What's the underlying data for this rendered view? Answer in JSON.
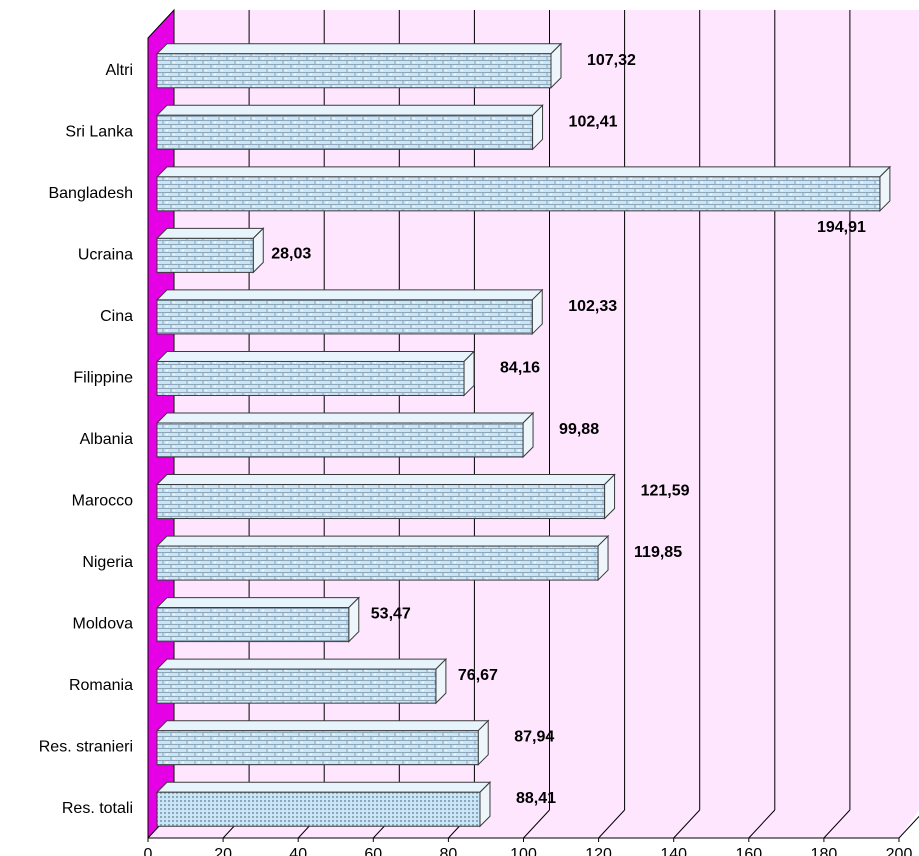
{
  "chart_data": {
    "type": "bar",
    "orientation": "horizontal",
    "categories": [
      "Altri",
      "Sri Lanka",
      "Bangladesh",
      "Ucraina",
      "Cina",
      "Filippine",
      "Albania",
      "Marocco",
      "Nigeria",
      "Moldova",
      "Romania",
      "Res. stranieri",
      "Res. totali"
    ],
    "values": [
      107.32,
      102.41,
      194.91,
      28.03,
      102.33,
      84.16,
      99.88,
      121.59,
      119.85,
      53.47,
      76.67,
      87.94,
      88.41
    ],
    "value_labels": [
      "107,32",
      "102,41",
      "194,91",
      "28,03",
      "102,33",
      "84,16",
      "99,88",
      "121,59",
      "119,85",
      "53,47",
      "76,67",
      "87,94",
      "88,41"
    ],
    "x_ticks": [
      "0",
      "20",
      "40",
      "60",
      "80",
      "100",
      "120",
      "140",
      "160",
      "180",
      "200"
    ],
    "xlim": [
      0,
      200
    ],
    "grid": true,
    "style": "3d",
    "colors": {
      "plot_background": "#FFE6FF",
      "left_wall": "#E600E6",
      "bar_fill": "#C8E6F8",
      "bar_pattern": "#8FA6B8",
      "bar_outline": "#3A3A3A",
      "grid": "#000000"
    }
  }
}
